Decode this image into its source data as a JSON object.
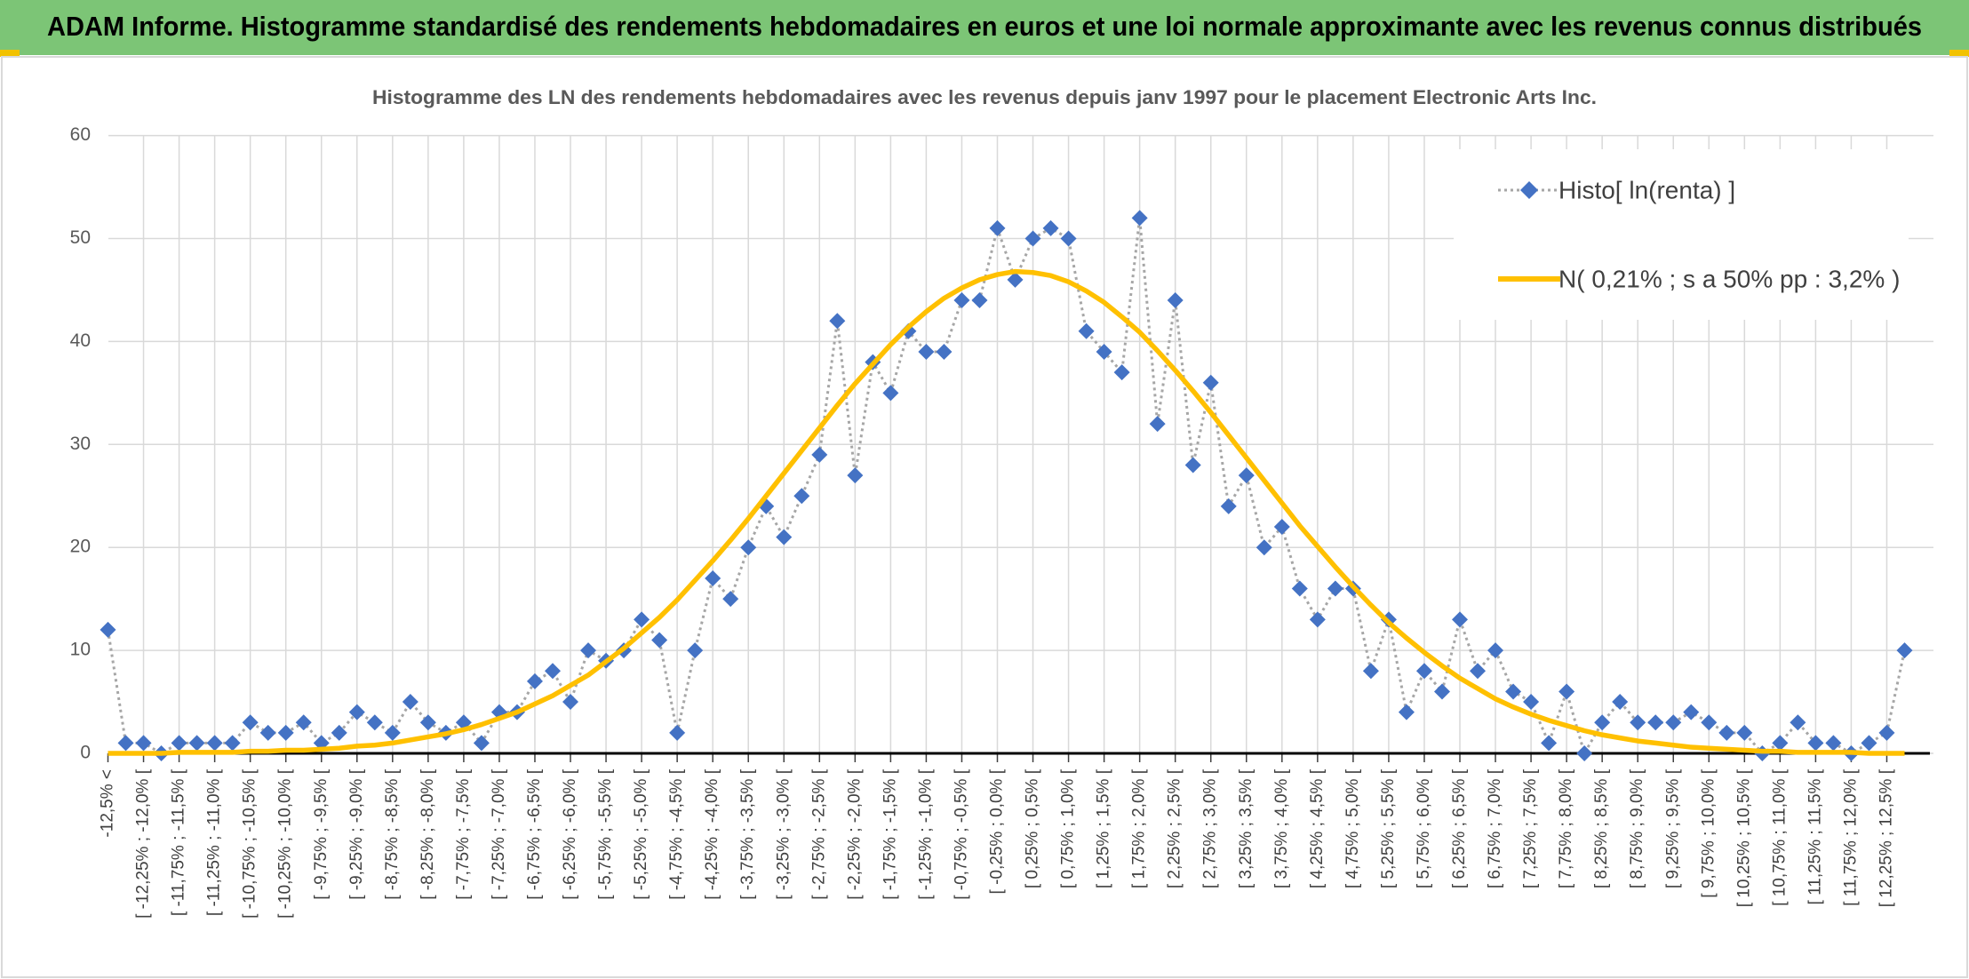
{
  "header": {
    "title": "ADAM Informe. Histogramme standardisé des rendements hebdomadaires en euros et une loi normale approximante avec les revenus connus distribués"
  },
  "chart_data": {
    "type": "line",
    "title": "Histogramme des LN des rendements hebdomadaires avec les revenus depuis janv 1997 pour le placement Electronic Arts Inc.",
    "categories": [
      "-12,5% <",
      null,
      "[ -12,25% ; -12,0% [",
      null,
      "[ -11,75% ; -11,5% [",
      null,
      "[ -11,25% ; -11,0% [",
      null,
      "[ -10,75% ; -10,5% [",
      null,
      "[ -10,25% ; -10,0% [",
      null,
      "[ -9,75% ; -9,5% [",
      null,
      "[ -9,25% ; -9,0% [",
      null,
      "[ -8,75% ; -8,5% [",
      null,
      "[ -8,25% ; -8,0% [",
      null,
      "[ -7,75% ; -7,5% [",
      null,
      "[ -7,25% ; -7,0% [",
      null,
      "[ -6,75% ; -6,5% [",
      null,
      "[ -6,25% ; -6,0% [",
      null,
      "[ -5,75% ; -5,5% [",
      null,
      "[ -5,25% ; -5,0% [",
      null,
      "[ -4,75% ; -4,5% [",
      null,
      "[ -4,25% ; -4,0% [",
      null,
      "[ -3,75% ; -3,5% [",
      null,
      "[ -3,25% ; -3,0% [",
      null,
      "[ -2,75% ; -2,5% [",
      null,
      "[ -2,25% ; -2,0% [",
      null,
      "[ -1,75% ; -1,5% [",
      null,
      "[ -1,25% ; -1,0% [",
      null,
      "[ -0,75% ; -0,5% [",
      null,
      "[ -0,25% ; 0,0% [",
      null,
      "[ 0,25% ; 0,5% [",
      null,
      "[ 0,75% ; 1,0% [",
      null,
      "[ 1,25% ; 1,5% [",
      null,
      "[ 1,75% ; 2,0% [",
      null,
      "[ 2,25% ; 2,5% [",
      null,
      "[ 2,75% ; 3,0% [",
      null,
      "[ 3,25% ; 3,5% [",
      null,
      "[ 3,75% ; 4,0% [",
      null,
      "[ 4,25% ; 4,5% [",
      null,
      "[ 4,75% ; 5,0% [",
      null,
      "[ 5,25% ; 5,5% [",
      null,
      "[ 5,75% ; 6,0% [",
      null,
      "[ 6,25% ; 6,5% [",
      null,
      "[ 6,75% ; 7,0% [",
      null,
      "[ 7,25% ; 7,5% [",
      null,
      "[ 7,75% ; 8,0% [",
      null,
      "[ 8,25% ; 8,5% [",
      null,
      "[ 8,75% ; 9,0% [",
      null,
      "[ 9,25% ; 9,5% [",
      null,
      "[ 9,75% ; 10,0% [",
      null,
      "[ 10,25% ; 10,5% [",
      null,
      "[ 10,75% ; 11,0% [",
      null,
      "[ 11,25% ; 11,5% [",
      null,
      "[ 11,75% ; 12,0% [",
      null,
      "[ 12,25% ; 12,5% [",
      null
    ],
    "series": [
      {
        "name": "Histo[ ln(renta) ]",
        "color": "#4472c4",
        "line_color": "#a6a6a6",
        "marker": "diamond",
        "values": [
          12,
          1,
          1,
          0,
          1,
          1,
          1,
          1,
          3,
          2,
          2,
          3,
          1,
          2,
          4,
          3,
          2,
          5,
          3,
          2,
          3,
          1,
          4,
          4,
          7,
          8,
          5,
          10,
          9,
          10,
          13,
          11,
          2,
          10,
          17,
          15,
          20,
          24,
          21,
          25,
          29,
          42,
          27,
          38,
          35,
          41,
          39,
          39,
          44,
          44,
          51,
          46,
          50,
          51,
          50,
          41,
          39,
          37,
          52,
          32,
          44,
          28,
          36,
          24,
          27,
          20,
          22,
          16,
          13,
          16,
          16,
          8,
          13,
          4,
          8,
          6,
          13,
          8,
          10,
          6,
          5,
          1,
          6,
          0,
          3,
          5,
          3,
          3,
          3,
          4,
          3,
          2,
          2,
          0,
          1,
          3,
          1,
          1,
          0,
          1,
          2,
          10
        ]
      },
      {
        "name": "N( 0,21% ; s a 50% pp : 3,2% )",
        "color": "#ffc000",
        "values": [
          0.0,
          0.0,
          0.0,
          0.0,
          0.1,
          0.1,
          0.1,
          0.1,
          0.2,
          0.2,
          0.3,
          0.3,
          0.4,
          0.5,
          0.7,
          0.8,
          1.0,
          1.3,
          1.6,
          1.9,
          2.3,
          2.8,
          3.4,
          4.0,
          4.8,
          5.6,
          6.6,
          7.6,
          8.9,
          10.2,
          11.7,
          13.2,
          14.9,
          16.8,
          18.7,
          20.7,
          22.8,
          25.0,
          27.2,
          29.4,
          31.6,
          33.8,
          35.9,
          37.8,
          39.7,
          41.4,
          42.9,
          44.2,
          45.2,
          46.0,
          46.5,
          46.8,
          46.7,
          46.4,
          45.8,
          44.9,
          43.8,
          42.4,
          40.9,
          39.1,
          37.2,
          35.2,
          33.1,
          30.9,
          28.7,
          26.5,
          24.3,
          22.1,
          20.1,
          18.1,
          16.2,
          14.4,
          12.7,
          11.2,
          9.8,
          8.5,
          7.3,
          6.3,
          5.3,
          4.5,
          3.8,
          3.2,
          2.7,
          2.2,
          1.8,
          1.5,
          1.2,
          1.0,
          0.8,
          0.6,
          0.5,
          0.4,
          0.3,
          0.2,
          0.2,
          0.1,
          0.1,
          0.1,
          0.1,
          0.0,
          0.0,
          0.0
        ]
      }
    ],
    "ylim": [
      0,
      60
    ],
    "yticks": [
      0,
      10,
      20,
      30,
      40,
      50,
      60
    ],
    "grid": true,
    "legend": "top-right"
  }
}
